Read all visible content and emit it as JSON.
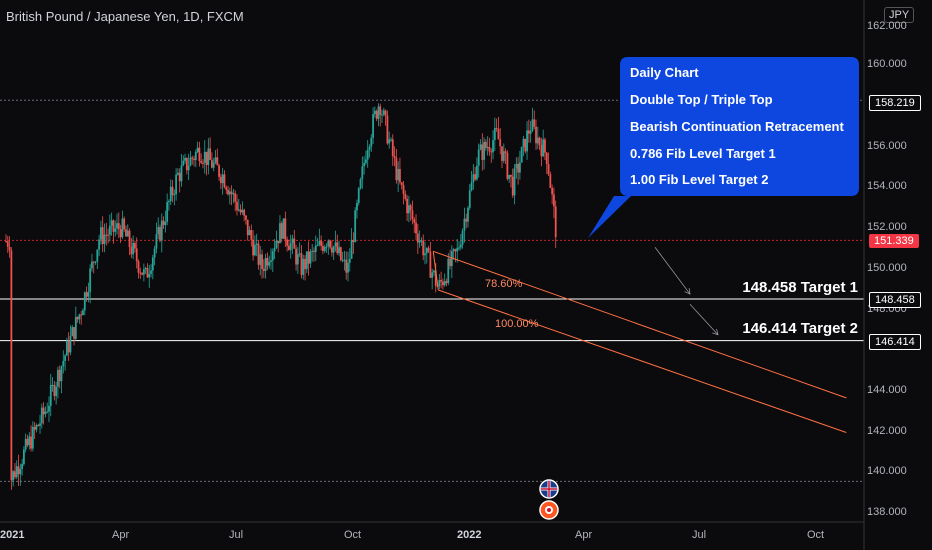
{
  "header": {
    "title": "British Pound / Japanese Yen, 1D, FXCM",
    "currency_badge": "JPY"
  },
  "callout": {
    "lines": [
      "Daily Chart",
      "Double Top / Triple Top",
      "Bearish Continuation Retracement",
      "0.786 Fib Level Target 1",
      "1.00  Fib Level Target 2"
    ],
    "color": "#0d47e0"
  },
  "labels": {
    "target1": "148.458 Target 1",
    "target2": "146.414 Target 2",
    "fib_786": "78.60%",
    "fib_100": "100.00%"
  },
  "price_tags": {
    "top": "158.219",
    "current": "151.339",
    "t1": "148.458",
    "t2": "146.414"
  },
  "chart_data": {
    "type": "candlestick",
    "title": "British Pound / Japanese Yen, 1D, FXCM",
    "y_ticks": [
      "162.000",
      "160.000",
      "158.000",
      "156.000",
      "154.000",
      "152.000",
      "150.000",
      "148.000",
      "146.000",
      "144.000",
      "142.000",
      "140.000",
      "138.000"
    ],
    "x_ticks": [
      "2021",
      "Apr",
      "Jul",
      "Oct",
      "2022",
      "Apr",
      "Jul",
      "Oct"
    ],
    "ylim": [
      137.5,
      162.5
    ],
    "levels": {
      "top": 158.219,
      "current": 151.339,
      "target1": 148.458,
      "target2": 146.414,
      "low_dotted": 139.5
    },
    "price_path": [
      [
        "2021-01-04",
        139.5
      ],
      [
        "2021-02-01",
        143.0
      ],
      [
        "2021-03-01",
        148.0
      ],
      [
        "2021-03-15",
        151.5
      ],
      [
        "2021-04-01",
        152.0
      ],
      [
        "2021-04-20",
        149.5
      ],
      [
        "2021-05-15",
        154.5
      ],
      [
        "2021-06-01",
        155.8
      ],
      [
        "2021-06-20",
        154.5
      ],
      [
        "2021-07-05",
        152.5
      ],
      [
        "2021-07-20",
        150.0
      ],
      [
        "2021-08-05",
        152.0
      ],
      [
        "2021-08-20",
        150.0
      ],
      [
        "2021-09-10",
        151.5
      ],
      [
        "2021-09-25",
        149.8
      ],
      [
        "2021-10-10",
        156.0
      ],
      [
        "2021-10-20",
        158.2
      ],
      [
        "2021-11-05",
        154.0
      ],
      [
        "2021-11-20",
        151.5
      ],
      [
        "2021-12-05",
        149.0
      ],
      [
        "2021-12-20",
        150.8
      ],
      [
        "2022-01-05",
        155.5
      ],
      [
        "2022-01-20",
        156.5
      ],
      [
        "2022-02-01",
        154.0
      ],
      [
        "2022-02-15",
        157.0
      ],
      [
        "2022-02-28",
        155.5
      ],
      [
        "2022-03-08",
        151.3
      ]
    ],
    "fib_lines": [
      {
        "name": "78.60%",
        "from": [
          "2021-12-01",
          150.8
        ],
        "to": [
          "2022-10-20",
          143.6
        ]
      },
      {
        "name": "100.00%",
        "from": [
          "2021-12-05",
          148.9
        ],
        "to": [
          "2022-10-20",
          141.9
        ]
      }
    ]
  }
}
